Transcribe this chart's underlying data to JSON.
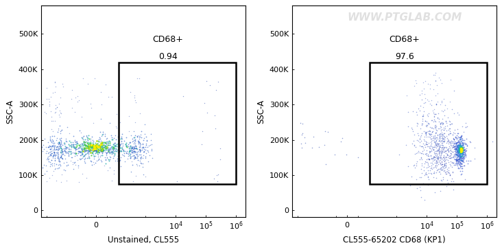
{
  "fig_width": 7.32,
  "fig_height": 3.64,
  "dpi": 100,
  "background_color": "#ffffff",
  "plots": [
    {
      "xlabel": "Unstained, CL555",
      "ylabel": "SSC-A",
      "gate_label_line1": "CD68+",
      "gate_label_line2": "0.94",
      "watermark": false
    },
    {
      "xlabel": "CL555-65202 CD68 (KP1)",
      "ylabel": "SSC-A",
      "gate_label_line1": "CD68+",
      "gate_label_line2": "97.6",
      "watermark": true
    }
  ],
  "gate_x_start": 200,
  "gate_y_start": 75000,
  "gate_x_end": 1000000,
  "gate_y_end": 420000,
  "xlim_left": -1500,
  "xlim_right": 2000000,
  "ylim_bottom": -18000,
  "ylim_top": 580000,
  "xscale_linthresh": 300,
  "yticks": [
    0,
    100000,
    200000,
    300000,
    400000,
    500000
  ],
  "ytick_labels": [
    "0",
    "100K",
    "200K",
    "300K",
    "400K",
    "500K"
  ],
  "xtick_positions": [
    0,
    10000,
    100000,
    1000000
  ],
  "watermark_text": "WWW.PTGLAB.COM",
  "watermark_color": "#d0d0d0",
  "watermark_fontsize": 11,
  "watermark_alpha": 0.65
}
